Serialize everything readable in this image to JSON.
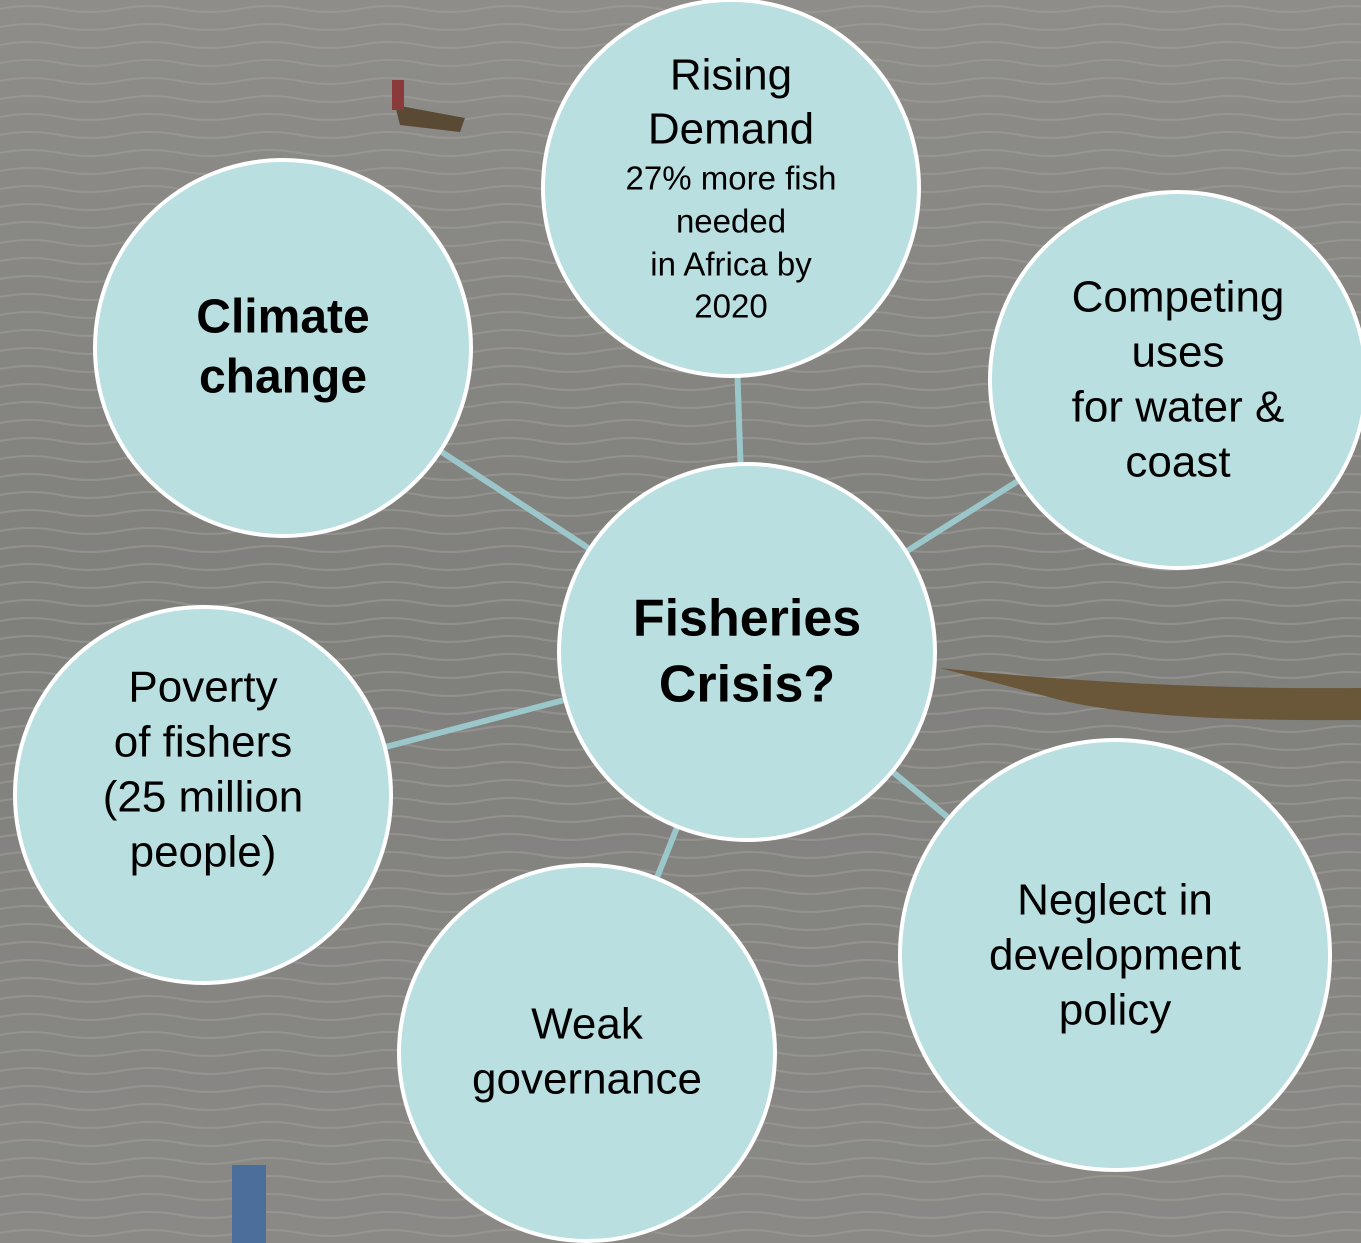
{
  "center": {
    "lines": [
      "Fisheries",
      "Crisis?"
    ]
  },
  "nodes": [
    {
      "lines": [
        "Rising",
        "Demand"
      ],
      "details": [
        "27% more fish",
        "needed",
        "in Africa by",
        "2020"
      ]
    },
    {
      "lines": [
        "Climate",
        "change"
      ]
    },
    {
      "lines": [
        "Competing",
        "uses",
        "for water &",
        "coast"
      ]
    },
    {
      "lines": [
        "Poverty",
        "of fishers",
        "(25 million",
        "people)"
      ]
    },
    {
      "lines": [
        "Weak",
        "governance"
      ]
    },
    {
      "lines": [
        "Neglect in",
        "development",
        "policy"
      ]
    }
  ]
}
